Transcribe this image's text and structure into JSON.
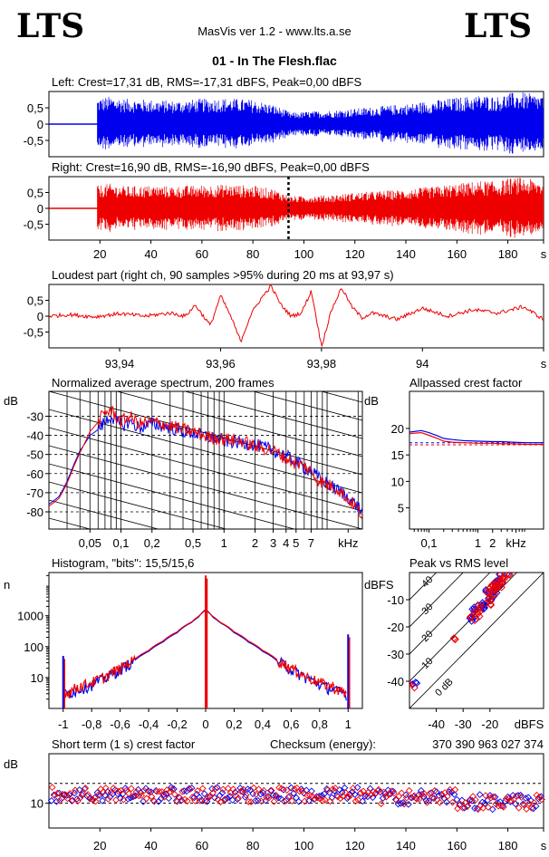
{
  "header": {
    "logo_left": "LTS",
    "logo_right": "LTS",
    "app_title": "MasVis ver 1.2 - www.lts.a.se",
    "file_title": "01 - In The Flesh.flac"
  },
  "colors": {
    "left_channel": "#0000ee",
    "right_channel": "#ee0000",
    "grid": "#000000",
    "background": "#ffffff"
  },
  "chart_data": [
    {
      "id": "left",
      "type": "area",
      "title": "Left: Crest=17,31 dB, RMS=-17,31 dBFS, Peak=0,00 dBFS",
      "yticks": [
        "0,5",
        "0",
        "-0,5"
      ],
      "ytick_values": [
        0.5,
        0,
        -0.5
      ],
      "ylim": [
        -1,
        1
      ],
      "xlim": [
        0,
        194
      ],
      "silence_until": 19,
      "envelope": {
        "x": [
          19,
          24,
          30,
          40,
          50,
          60,
          70,
          80,
          88,
          95,
          100,
          110,
          120,
          130,
          140,
          150,
          160,
          170,
          176,
          180,
          186,
          190,
          194
        ],
        "amplitude": [
          0.8,
          0.85,
          0.78,
          0.75,
          0.72,
          0.78,
          0.8,
          0.75,
          0.6,
          0.35,
          0.38,
          0.42,
          0.48,
          0.55,
          0.62,
          0.72,
          0.82,
          0.9,
          0.85,
          0.96,
          0.98,
          0.92,
          0.88
        ]
      }
    },
    {
      "id": "right",
      "type": "area",
      "title": "Right: Crest=16,90 dB, RMS=-16,90 dBFS, Peak=0,00 dBFS",
      "yticks": [
        "0,5",
        "0",
        "-0,5"
      ],
      "ytick_values": [
        0.5,
        0,
        -0.5
      ],
      "ylim": [
        -1,
        1
      ],
      "xlim": [
        0,
        194
      ],
      "silence_until": 19,
      "marker_x": 93.97,
      "xticks": [
        "20",
        "40",
        "60",
        "80",
        "100",
        "120",
        "140",
        "160",
        "180",
        "s"
      ],
      "xtick_values": [
        20,
        40,
        60,
        80,
        100,
        120,
        140,
        160,
        180,
        194
      ],
      "envelope": {
        "x": [
          19,
          24,
          30,
          40,
          50,
          60,
          70,
          80,
          88,
          95,
          100,
          110,
          120,
          130,
          140,
          150,
          160,
          170,
          176,
          180,
          186,
          190,
          194
        ],
        "amplitude": [
          0.72,
          0.78,
          0.7,
          0.72,
          0.7,
          0.74,
          0.76,
          0.72,
          0.62,
          0.38,
          0.4,
          0.42,
          0.5,
          0.55,
          0.6,
          0.68,
          0.78,
          0.88,
          0.84,
          0.95,
          0.98,
          0.9,
          0.86
        ]
      }
    },
    {
      "id": "loudest",
      "type": "line",
      "title": "Loudest part (right ch, 90 samples >95% during 20 ms at 93,97 s)",
      "yticks": [
        "0,5",
        "0",
        "-0,5"
      ],
      "ytick_values": [
        0.5,
        0,
        -0.5
      ],
      "ylim": [
        -1,
        1
      ],
      "xlim": [
        93.926,
        94.024
      ],
      "xticks": [
        "93,94",
        "93,96",
        "93,98",
        "94",
        "s"
      ],
      "xtick_values": [
        93.94,
        93.96,
        93.98,
        94.0,
        94.024
      ],
      "series": [
        {
          "x": [
            93.926,
            93.93,
            93.935,
            93.94,
            93.945,
            93.95,
            93.953,
            93.955,
            93.958,
            93.96,
            93.962,
            93.964,
            93.966,
            93.968,
            93.97,
            93.972,
            93.974,
            93.976,
            93.978,
            93.98,
            93.982,
            93.984,
            93.986,
            93.988,
            93.99,
            93.995,
            94.0,
            94.005,
            94.01,
            94.015,
            94.02,
            94.024
          ],
          "y": [
            0.0,
            0.05,
            -0.02,
            0.08,
            0.0,
            0.1,
            0.0,
            0.35,
            -0.3,
            0.65,
            0.0,
            -0.8,
            0.05,
            0.55,
            0.95,
            0.35,
            0.0,
            0.1,
            0.8,
            -0.95,
            0.2,
            0.9,
            0.3,
            -0.05,
            0.1,
            -0.1,
            0.25,
            0.0,
            0.2,
            0.1,
            0.3,
            -0.1
          ]
        }
      ]
    },
    {
      "id": "spectrum",
      "type": "line",
      "title": "Normalized average spectrum, 200 frames",
      "ylabel": "dB",
      "yticks": [
        "-30",
        "-40",
        "-50",
        "-60",
        "-70",
        "-80"
      ],
      "ytick_values": [
        -30,
        -40,
        -50,
        -60,
        -70,
        -80
      ],
      "ylim": [
        -89,
        -17
      ],
      "xlim": [
        0.02,
        22
      ],
      "xscale": "log",
      "xticks": [
        "0,05",
        "0,1",
        "0,2",
        "0,5",
        "1",
        "2",
        "3",
        "4",
        "5",
        "7",
        "kHz"
      ],
      "xtick_values": [
        0.05,
        0.1,
        0.2,
        0.5,
        1,
        2,
        3,
        4,
        5,
        7,
        16
      ],
      "series": [
        {
          "name_hidden": "left",
          "x": [
            0.02,
            0.025,
            0.03,
            0.035,
            0.04,
            0.05,
            0.06,
            0.07,
            0.08,
            0.1,
            0.12,
            0.15,
            0.2,
            0.3,
            0.4,
            0.5,
            0.7,
            1,
            1.5,
            2,
            3,
            4,
            5,
            6,
            7,
            8,
            10,
            12,
            15,
            18,
            22
          ],
          "y": [
            -76,
            -72,
            -64,
            -55,
            -48,
            -40,
            -37,
            -33,
            -30,
            -35,
            -33,
            -36,
            -34,
            -36,
            -38,
            -39,
            -41,
            -43,
            -44,
            -45,
            -48,
            -51,
            -54,
            -57,
            -58,
            -62,
            -65,
            -68,
            -71,
            -75,
            -80
          ]
        },
        {
          "name_hidden": "right",
          "x": [
            0.02,
            0.025,
            0.03,
            0.035,
            0.04,
            0.05,
            0.06,
            0.07,
            0.08,
            0.1,
            0.12,
            0.15,
            0.2,
            0.3,
            0.4,
            0.5,
            0.7,
            1,
            1.5,
            2,
            3,
            4,
            5,
            6,
            7,
            8,
            10,
            12,
            15,
            18,
            22
          ],
          "y": [
            -77,
            -73,
            -65,
            -56,
            -49,
            -38,
            -33,
            -28,
            -27,
            -33,
            -30,
            -34,
            -33,
            -35,
            -37,
            -38,
            -41,
            -42,
            -43,
            -46,
            -48,
            -52,
            -55,
            -56,
            -59,
            -63,
            -66,
            -67,
            -72,
            -76,
            -82
          ]
        }
      ]
    },
    {
      "id": "allpass",
      "type": "line",
      "title": "Allpassed crest factor",
      "ylabel": "dB",
      "yticks": [
        "20",
        "15",
        "10",
        "5"
      ],
      "ytick_values": [
        20,
        15,
        10,
        5
      ],
      "ylim": [
        1,
        27
      ],
      "xlim": [
        0.04,
        22
      ],
      "xscale": "log",
      "xticks": [
        "0,1",
        "1",
        "2",
        "kHz"
      ],
      "xtick_values": [
        0.1,
        1,
        2,
        6
      ],
      "reference_lines": [
        17.3,
        16.9
      ],
      "series": [
        {
          "name_hidden": "left",
          "x": [
            0.04,
            0.05,
            0.07,
            0.1,
            0.15,
            0.2,
            0.3,
            0.5,
            1,
            2,
            3,
            5,
            10,
            22
          ],
          "y": [
            19.3,
            19.4,
            19.6,
            19.2,
            18.6,
            18.1,
            17.9,
            17.7,
            17.6,
            17.5,
            17.5,
            17.4,
            17.3,
            17.3
          ]
        },
        {
          "name_hidden": "right",
          "x": [
            0.04,
            0.05,
            0.07,
            0.1,
            0.15,
            0.2,
            0.3,
            0.5,
            1,
            2,
            3,
            5,
            10,
            22
          ],
          "y": [
            19.0,
            19.1,
            19.2,
            18.7,
            18.1,
            17.6,
            17.4,
            17.3,
            17.2,
            17.2,
            17.1,
            17.1,
            17.0,
            17.0
          ]
        }
      ]
    },
    {
      "id": "histogram",
      "type": "line",
      "title": "Histogram, \"bits\": 15,5/15,6",
      "ylabel": "n",
      "yscale": "log",
      "yticks": [
        "1000",
        "100",
        "10"
      ],
      "ytick_values": [
        1000,
        100,
        10
      ],
      "ylim": [
        1,
        25000
      ],
      "xlim": [
        -1.1,
        1.1
      ],
      "xticks": [
        "-1",
        "-0,8",
        "-0,6",
        "-0,4",
        "-0,2",
        "0",
        "0,2",
        "0,4",
        "0,6",
        "0,8",
        "1"
      ],
      "xtick_values": [
        -1,
        -0.8,
        -0.6,
        -0.4,
        -0.2,
        0,
        0.2,
        0.4,
        0.6,
        0.8,
        1
      ],
      "spikes": [
        {
          "x": -1.0,
          "n": 50
        },
        {
          "x": 0.0,
          "n": 20000
        },
        {
          "x": 1.0,
          "n": 250
        }
      ],
      "series": [
        {
          "name_hidden": "left",
          "x": [
            -0.98,
            -0.9,
            -0.8,
            -0.7,
            -0.6,
            -0.5,
            -0.4,
            -0.3,
            -0.2,
            -0.1,
            -0.05,
            0,
            0.05,
            0.1,
            0.2,
            0.3,
            0.4,
            0.5,
            0.6,
            0.7,
            0.8,
            0.9,
            0.98
          ],
          "y": [
            3,
            4,
            6,
            10,
            18,
            35,
            70,
            140,
            280,
            600,
            900,
            1600,
            900,
            600,
            280,
            140,
            70,
            35,
            18,
            10,
            6,
            4,
            3
          ]
        },
        {
          "name_hidden": "right",
          "x": [
            -0.98,
            -0.9,
            -0.8,
            -0.7,
            -0.6,
            -0.5,
            -0.4,
            -0.3,
            -0.2,
            -0.1,
            -0.05,
            0,
            0.05,
            0.1,
            0.2,
            0.3,
            0.4,
            0.5,
            0.6,
            0.7,
            0.8,
            0.9,
            0.98
          ],
          "y": [
            3,
            5,
            7,
            11,
            20,
            38,
            75,
            150,
            300,
            620,
            950,
            1500,
            950,
            620,
            300,
            150,
            75,
            38,
            20,
            11,
            7,
            5,
            3
          ]
        }
      ]
    },
    {
      "id": "peak_vs_rms",
      "type": "scatter",
      "title": "Peak vs RMS level",
      "ylabel": "dBFS",
      "xlabel": "dBFS",
      "yticks": [
        "-10",
        "-20",
        "-30",
        "-40"
      ],
      "ytick_values": [
        -10,
        -20,
        -30,
        -40
      ],
      "xticks": [
        "-40",
        "-30",
        "-20"
      ],
      "xtick_values": [
        -40,
        -30,
        -20
      ],
      "xlim": [
        -50,
        0
      ],
      "ylim": [
        -50,
        0
      ],
      "crest_labels": [
        "40",
        "30",
        "20",
        "10",
        "0 dB"
      ],
      "crest_values": [
        40,
        30,
        20,
        10,
        0
      ],
      "series": [
        {
          "name_hidden": "left",
          "x": [
            -48,
            -28,
            -26,
            -25,
            -24,
            -23,
            -22,
            -21,
            -20,
            -19,
            -18,
            -17,
            -16,
            -15,
            -20,
            -22,
            -18,
            -17
          ],
          "y": [
            -40,
            -18,
            -16,
            -14,
            -13,
            -12,
            -11,
            -9,
            -7,
            -5,
            -4,
            -3,
            -2,
            -2,
            -9,
            -12,
            -6,
            -4
          ]
        },
        {
          "name_hidden": "right",
          "x": [
            -49,
            -33,
            -27,
            -25,
            -24,
            -23,
            -21,
            -20,
            -19,
            -18,
            -17,
            -16,
            -15,
            -21,
            -19,
            -18,
            -16,
            -14
          ],
          "y": [
            -41,
            -24,
            -17,
            -15,
            -14,
            -12,
            -10,
            -8,
            -6,
            -5,
            -4,
            -3,
            -2,
            -11,
            -7,
            -6,
            -4,
            -1
          ]
        }
      ]
    },
    {
      "id": "short_term_crest",
      "type": "scatter",
      "title": "Short term (1 s) crest factor",
      "checksum_label": "Checksum (energy):",
      "checksum_value": "370 390 963 027 374",
      "ylabel": "dB",
      "yticks": [
        "10"
      ],
      "ytick_values": [
        10
      ],
      "ylim": [
        0,
        30
      ],
      "xlim": [
        0,
        194
      ],
      "xticks": [
        "20",
        "40",
        "60",
        "80",
        "100",
        "120",
        "140",
        "160",
        "180",
        "s"
      ],
      "xtick_values": [
        20,
        40,
        60,
        80,
        100,
        120,
        140,
        160,
        180,
        194
      ],
      "reference_lines": [
        18.0,
        10.0
      ]
    }
  ]
}
